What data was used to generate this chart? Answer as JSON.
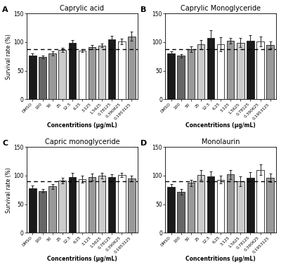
{
  "panels": [
    {
      "label": "A",
      "title": "Caprylic acid",
      "dashed_line": 88,
      "categories": [
        "DMSO",
        "100",
        "50",
        "25",
        "12.5",
        "6.25",
        "3.125",
        "1.5625",
        "0.78125",
        "0.390625",
        "0.1953125"
      ],
      "values": [
        76,
        74,
        80,
        86,
        98,
        85,
        91,
        94,
        105,
        101,
        110
      ],
      "errors": [
        4,
        3,
        4,
        4,
        6,
        3,
        4,
        3,
        6,
        5,
        8
      ],
      "colors": [
        "#1a1a1a",
        "#666666",
        "#999999",
        "#cccccc",
        "#1a1a1a",
        "#ffffff",
        "#999999",
        "#cccccc",
        "#1a1a1a",
        "#ffffff",
        "#999999"
      ]
    },
    {
      "label": "B",
      "title": "Caprylic Monoglyceride",
      "dashed_line": 88,
      "categories": [
        "DMSO",
        "100",
        "50",
        "25",
        "12.5",
        "6.25",
        "3.125",
        "1.5625",
        "0.78125",
        "0.390625",
        "0.1953125"
      ],
      "values": [
        80,
        76,
        87,
        96,
        107,
        96,
        102,
        99,
        102,
        101,
        95
      ],
      "errors": [
        4,
        3,
        5,
        8,
        14,
        12,
        5,
        8,
        10,
        9,
        6
      ],
      "colors": [
        "#1a1a1a",
        "#666666",
        "#999999",
        "#cccccc",
        "#1a1a1a",
        "#ffffff",
        "#999999",
        "#cccccc",
        "#1a1a1a",
        "#ffffff",
        "#999999"
      ]
    },
    {
      "label": "C",
      "title": "Capric monoglyceride",
      "dashed_line": 90,
      "categories": [
        "DMSO",
        "100",
        "50",
        "25",
        "12.5",
        "6.25",
        "3.125",
        "1.5625",
        "0.78125",
        "0.390625",
        "0.1953125"
      ],
      "values": [
        78,
        73,
        81,
        91,
        97,
        94,
        97,
        100,
        97,
        101,
        95
      ],
      "errors": [
        4,
        3,
        4,
        5,
        8,
        6,
        6,
        5,
        5,
        4,
        5
      ],
      "colors": [
        "#1a1a1a",
        "#666666",
        "#999999",
        "#cccccc",
        "#1a1a1a",
        "#ffffff",
        "#999999",
        "#cccccc",
        "#1a1a1a",
        "#ffffff",
        "#999999"
      ]
    },
    {
      "label": "D",
      "title": "Monolaurin",
      "dashed_line": 90,
      "categories": [
        "DMSO",
        "100",
        "50",
        "25",
        "12.5",
        "6.25",
        "3.125",
        "1.5625",
        "0.78125",
        "0.390625",
        "0.1953125"
      ],
      "values": [
        80,
        71,
        87,
        101,
        99,
        93,
        102,
        90,
        96,
        110,
        96
      ],
      "errors": [
        5,
        5,
        6,
        9,
        8,
        7,
        8,
        9,
        10,
        9,
        7
      ],
      "colors": [
        "#1a1a1a",
        "#666666",
        "#999999",
        "#cccccc",
        "#1a1a1a",
        "#ffffff",
        "#999999",
        "#cccccc",
        "#1a1a1a",
        "#ffffff",
        "#999999"
      ]
    }
  ],
  "ylabel": "Survival rate (%)",
  "xlabel": "Concentritions µg/mL",
  "ylim": [
    0,
    150
  ],
  "yticks": [
    0,
    50,
    100,
    150
  ],
  "bar_width": 0.75,
  "edge_color": "#222222",
  "background_color": "#ffffff",
  "fig_width": 4.0,
  "fig_height": 3.8
}
